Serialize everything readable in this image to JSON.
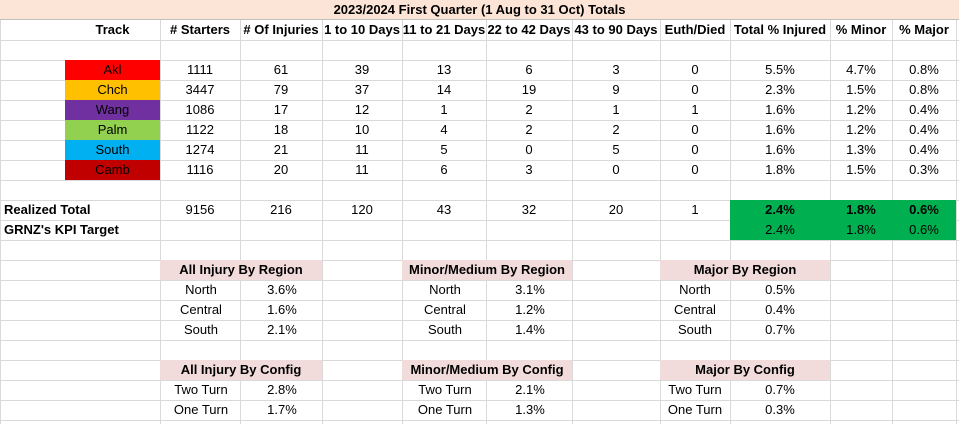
{
  "title": "2023/2024 First Quarter (1 Aug to  31 Oct) Totals",
  "headers": [
    "Track",
    "# Starters",
    "# Of Injuries",
    "1 to 10 Days",
    "11 to 21 Days",
    "22 to 42 Days",
    "43 to 90 Days",
    "Euth/Died",
    "Total % Injured",
    "% Minor",
    "% Major"
  ],
  "tracks": [
    {
      "name": "Akl",
      "color": "#ff0000",
      "cells": [
        "1111",
        "61",
        "39",
        "13",
        "6",
        "3",
        "0",
        "5.5%",
        "4.7%",
        "0.8%"
      ]
    },
    {
      "name": "Chch",
      "color": "#ffc000",
      "cells": [
        "3447",
        "79",
        "37",
        "14",
        "19",
        "9",
        "0",
        "2.3%",
        "1.5%",
        "0.8%"
      ]
    },
    {
      "name": "Wang",
      "color": "#7030a0",
      "cells": [
        "1086",
        "17",
        "12",
        "1",
        "2",
        "1",
        "1",
        "1.6%",
        "1.2%",
        "0.4%"
      ]
    },
    {
      "name": "Palm",
      "color": "#92d050",
      "cells": [
        "1122",
        "18",
        "10",
        "4",
        "2",
        "2",
        "0",
        "1.6%",
        "1.2%",
        "0.4%"
      ]
    },
    {
      "name": "South",
      "color": "#00b0f0",
      "cells": [
        "1274",
        "21",
        "11",
        "5",
        "0",
        "5",
        "0",
        "1.6%",
        "1.3%",
        "0.4%"
      ]
    },
    {
      "name": "Camb",
      "color": "#c00000",
      "cells": [
        "1116",
        "20",
        "11",
        "6",
        "3",
        "0",
        "0",
        "1.8%",
        "1.5%",
        "0.3%"
      ]
    }
  ],
  "realized": {
    "label": "Realized Total",
    "cells": [
      "9156",
      "216",
      "120",
      "43",
      "32",
      "20",
      "1",
      "2.4%",
      "1.8%",
      "0.6%"
    ]
  },
  "kpi": {
    "label": "GRNZ's KPI Target",
    "cells": [
      "2.4%",
      "1.8%",
      "0.6%"
    ]
  },
  "region_tables": [
    {
      "title": "All Injury By Region",
      "rows": [
        [
          "North",
          "3.6%"
        ],
        [
          "Central",
          "1.6%"
        ],
        [
          "South",
          "2.1%"
        ]
      ]
    },
    {
      "title": "Minor/Medium By Region",
      "rows": [
        [
          "North",
          "3.1%"
        ],
        [
          "Central",
          "1.2%"
        ],
        [
          "South",
          "1.4%"
        ]
      ]
    },
    {
      "title": "Major By Region",
      "rows": [
        [
          "North",
          "0.5%"
        ],
        [
          "Central",
          "0.4%"
        ],
        [
          "South",
          "0.7%"
        ]
      ]
    }
  ],
  "config_tables": [
    {
      "title": "All Injury By Config",
      "rows": [
        [
          "Two Turn",
          "2.8%"
        ],
        [
          "One Turn",
          "1.7%"
        ]
      ]
    },
    {
      "title": "Minor/Medium By Config",
      "rows": [
        [
          "Two Turn",
          "2.1%"
        ],
        [
          "One Turn",
          "1.3%"
        ]
      ]
    },
    {
      "title": "Major By Config",
      "rows": [
        [
          "Two Turn",
          "0.7%"
        ],
        [
          "One Turn",
          "0.3%"
        ]
      ]
    }
  ]
}
